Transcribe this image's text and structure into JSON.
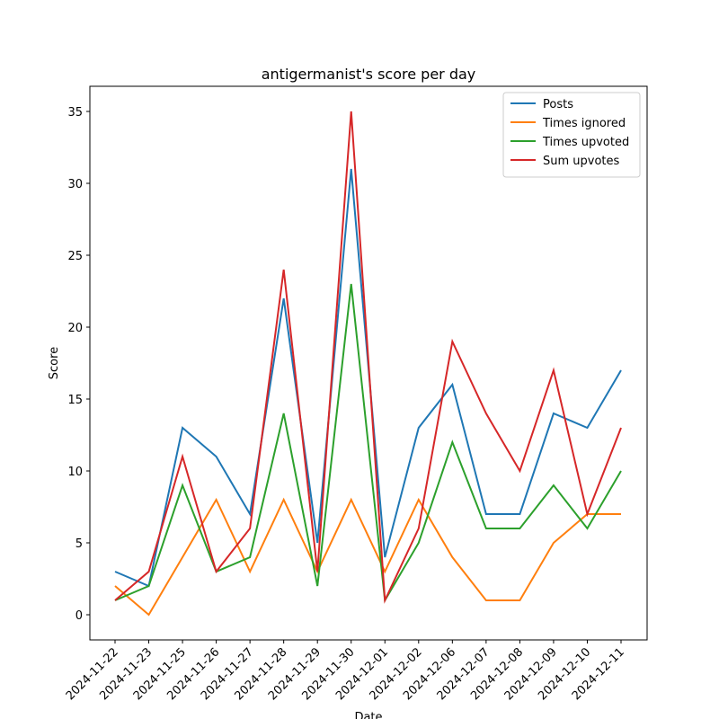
{
  "chart_data": {
    "type": "line",
    "title": "antigermanist's score per day",
    "x_label": "Date",
    "y_label": "Score",
    "categories": [
      "2024-11-22",
      "2024-11-23",
      "2024-11-25",
      "2024-11-26",
      "2024-11-27",
      "2024-11-28",
      "2024-11-29",
      "2024-11-30",
      "2024-12-01",
      "2024-12-02",
      "2024-12-06",
      "2024-12-07",
      "2024-12-08",
      "2024-12-09",
      "2024-12-10",
      "2024-12-11"
    ],
    "series": [
      {
        "name": "Posts",
        "color": "#1f77b4",
        "values": [
          3,
          2,
          13,
          11,
          7,
          22,
          5,
          31,
          4,
          13,
          16,
          7,
          7,
          14,
          13,
          17
        ]
      },
      {
        "name": "Times ignored",
        "color": "#ff7f0e",
        "values": [
          2,
          0,
          4,
          8,
          3,
          8,
          3,
          8,
          3,
          8,
          4,
          1,
          1,
          5,
          7,
          7
        ]
      },
      {
        "name": "Times upvoted",
        "color": "#2ca02c",
        "values": [
          1,
          2,
          9,
          3,
          4,
          14,
          2,
          23,
          1,
          5,
          12,
          6,
          6,
          9,
          6,
          10
        ]
      },
      {
        "name": "Sum upvotes",
        "color": "#d62728",
        "values": [
          1,
          3,
          11,
          3,
          6,
          24,
          3,
          35,
          1,
          6,
          19,
          14,
          10,
          17,
          7,
          13
        ]
      }
    ],
    "ylim": [
      -1.75,
      36.75
    ],
    "yticks": [
      0,
      5,
      10,
      15,
      20,
      25,
      30,
      35
    ],
    "grid": false,
    "legend": "upper right"
  }
}
